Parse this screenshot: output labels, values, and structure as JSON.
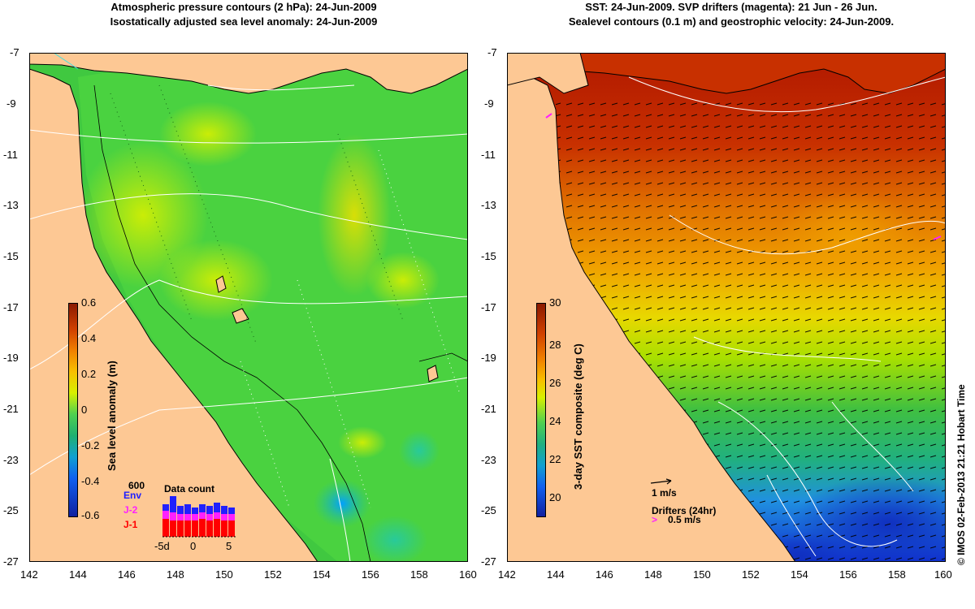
{
  "left_panel": {
    "title_line1": "Atmospheric pressure contours (2 hPa): 24-Jun-2009",
    "title_line2": "Isostatically adjusted sea level anomaly: 24-Jun-2009",
    "colorbar_title": "Sea level anomaly (m)",
    "colorbar_ticks": [
      "0.6",
      "0.4",
      "0.2",
      "0",
      "-0.2",
      "-0.4",
      "-0.6"
    ],
    "inset": {
      "title": "Data count",
      "max_label": "600",
      "legend": [
        {
          "label": "Env",
          "color": "#2020ff"
        },
        {
          "label": "J-2",
          "color": "#ff20ff"
        },
        {
          "label": "J-1",
          "color": "#ff0000"
        }
      ],
      "x_ticks": [
        "-5d",
        "0",
        "5"
      ]
    }
  },
  "right_panel": {
    "title_line1": "SST: 24-Jun-2009. SVP drifters (magenta): 21 Jun - 26 Jun.",
    "title_line2": "Sealevel contours (0.1 m) and geostrophic velocity: 24-Jun-2009.",
    "colorbar_title": "3-day SST composite (deg C)",
    "colorbar_ticks": [
      "30",
      "28",
      "26",
      "24",
      "22",
      "20"
    ],
    "scale_arrow_label": "1 m/s",
    "drifters_label": "Drifters (24hr)",
    "drifters_scale_label": "0.5 m/s",
    "drifter_color": "#ff20ff"
  },
  "axes": {
    "lat_ticks": [
      "-7",
      "-9",
      "-11",
      "-13",
      "-15",
      "-17",
      "-19",
      "-21",
      "-23",
      "-25",
      "-27"
    ],
    "lon_ticks": [
      "142",
      "144",
      "146",
      "148",
      "150",
      "152",
      "154",
      "156",
      "158",
      "160"
    ]
  },
  "colors": {
    "land": "#fdc894",
    "ocean_green": "#3cc43c",
    "high_sst": "#b01800",
    "cold_sst": "#1030d0"
  },
  "credit": "© IMOS 02-Feb-2013 21:21 Hobart Time"
}
